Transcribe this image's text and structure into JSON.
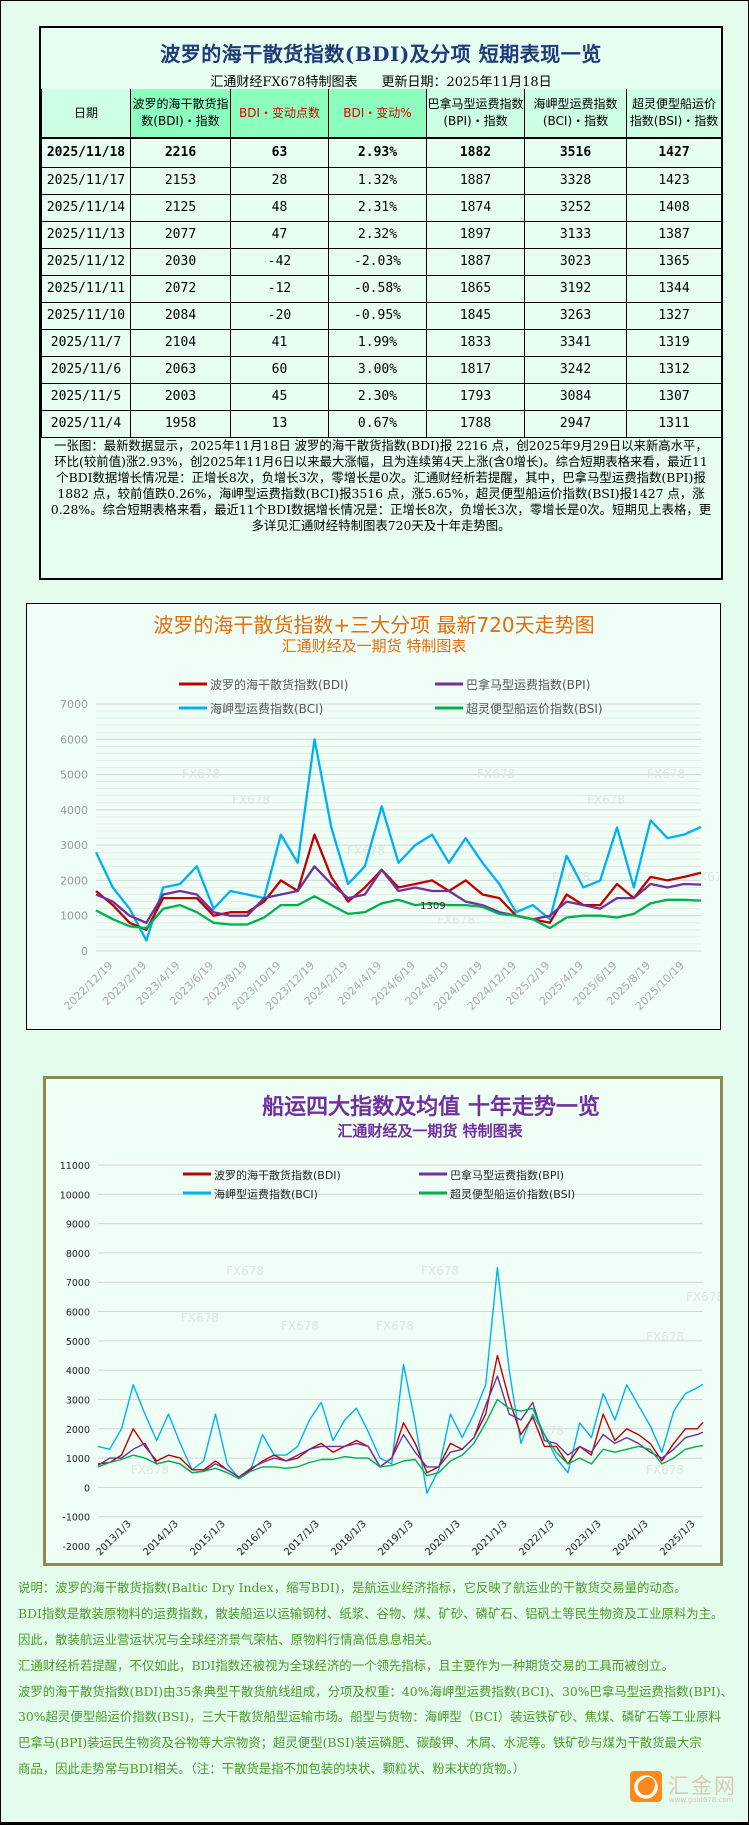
{
  "table_section": {
    "title": "波罗的海干散货指数(BDI)及分项 短期表现一览",
    "source": "汇通财经FX678特制图表",
    "updated": "更新日期：2025年11月18日",
    "headers": [
      "日期",
      "波罗的海干散货指数(BDI)・指数",
      "BDI・变动点数",
      "BDI・变动%",
      "巴拿马型运费指数(BPI)・指数",
      "海岬型运费指数(BCI)・指数",
      "超灵便型船运价指数(BSI)・指数"
    ],
    "rows": [
      [
        "2025/11/18",
        "2216",
        "63",
        "2.93%",
        "1882",
        "3516",
        "1427"
      ],
      [
        "2025/11/17",
        "2153",
        "28",
        "1.32%",
        "1887",
        "3328",
        "1423"
      ],
      [
        "2025/11/14",
        "2125",
        "48",
        "2.31%",
        "1874",
        "3252",
        "1408"
      ],
      [
        "2025/11/13",
        "2077",
        "47",
        "2.32%",
        "1897",
        "3133",
        "1387"
      ],
      [
        "2025/11/12",
        "2030",
        "-42",
        "-2.03%",
        "1887",
        "3023",
        "1365"
      ],
      [
        "2025/11/11",
        "2072",
        "-12",
        "-0.58%",
        "1865",
        "3192",
        "1344"
      ],
      [
        "2025/11/10",
        "2084",
        "-20",
        "-0.95%",
        "1845",
        "3263",
        "1327"
      ],
      [
        "2025/11/7",
        "2104",
        "41",
        "1.99%",
        "1833",
        "3341",
        "1319"
      ],
      [
        "2025/11/6",
        "2063",
        "60",
        "3.00%",
        "1817",
        "3242",
        "1312"
      ],
      [
        "2025/11/5",
        "2003",
        "45",
        "2.30%",
        "1793",
        "3084",
        "1307"
      ],
      [
        "2025/11/4",
        "1958",
        "13",
        "0.67%",
        "1788",
        "2947",
        "1311"
      ]
    ],
    "summary_lines": [
      "一张图：最新数据显示，2025年11月18日 波罗的海干散货指数(BDI)报 2216 点，创2025年9月29日以来新高水平，",
      "环比(较前值)涨2.93%，创2025年11月6日以来最大涨幅，且为连续第4天上涨(含0增长)。综合短期表格来看，最近11",
      "个BDI数据增长情况是：正增长8次，负增长3次，零增长是0次。汇通财经析若提醒，其中，巴拿马型运费指数(BPI)报",
      "1882 点，较前值跌0.26%，海岬型运费指数(BCI)报3516 点，涨5.65%，超灵便型船运价指数(BSI)报1427 点，涨",
      "0.28%。综合短期表格来看，最近11个BDI数据增长情况是：正增长8次，负增长3次，零增长是0次。短期见上表格，更",
      "多详见汇通财经特制图表720天及十年走势图。"
    ]
  },
  "chart_data": [
    {
      "type": "line",
      "title": "波罗的海干散货指数+三大分项  最新720天走势图",
      "subtitle": "汇通财经及一期货  特制图表",
      "title_color": "#e46c0a",
      "ylim": [
        0,
        7000
      ],
      "yticks": [
        "0",
        "1000",
        "2000",
        "3000",
        "4000",
        "5000",
        "6000",
        "7000"
      ],
      "xticks": [
        "2022/12/19",
        "2023/2/19",
        "2023/4/19",
        "2023/6/19",
        "2023/8/19",
        "2023/10/19",
        "2023/12/19",
        "2024/2/19",
        "2024/4/19",
        "2024/6/19",
        "2024/8/19",
        "2024/10/19",
        "2024/12/19",
        "2025/2/19",
        "2025/4/19",
        "2025/6/19",
        "2025/8/19",
        "2025/10/19"
      ],
      "grid": true,
      "legend_placement": "top",
      "annotation": "1309",
      "watermark": "FX678",
      "x": [
        "2022/11/18",
        "2022/12/18",
        "2023/1/18",
        "2023/2/18",
        "2023/3/18",
        "2023/4/18",
        "2023/5/18",
        "2023/6/18",
        "2023/7/18",
        "2023/8/18",
        "2023/9/18",
        "2023/10/18",
        "2023/11/18",
        "2023/12/18",
        "2024/1/18",
        "2024/2/18",
        "2024/3/18",
        "2024/4/18",
        "2024/5/18",
        "2024/6/18",
        "2024/7/18",
        "2024/8/18",
        "2024/9/18",
        "2024/10/18",
        "2024/11/18",
        "2024/12/18",
        "2025/1/18",
        "2025/2/18",
        "2025/3/18",
        "2025/4/18",
        "2025/5/18",
        "2025/6/18",
        "2025/7/18",
        "2025/8/18",
        "2025/9/18",
        "2025/10/18",
        "2025/11/18"
      ],
      "series": [
        {
          "name": "波罗的海干散货指数(BDI)",
          "color": "#c00000",
          "values": [
            1700,
            1300,
            800,
            600,
            1500,
            1500,
            1500,
            1000,
            1100,
            1100,
            1400,
            2000,
            1700,
            3300,
            2100,
            1400,
            1800,
            2300,
            1800,
            1900,
            2000,
            1700,
            2000,
            1600,
            1500,
            1000,
            900,
            800,
            1600,
            1300,
            1300,
            1900,
            1500,
            2100,
            2000,
            2100,
            2216
          ]
        },
        {
          "name": "巴拿马型运费指数(BPI)",
          "color": "#7030a0",
          "values": [
            1600,
            1400,
            1000,
            800,
            1600,
            1700,
            1600,
            1100,
            1000,
            1000,
            1500,
            1600,
            1700,
            2400,
            1900,
            1500,
            1600,
            2300,
            1700,
            1800,
            1700,
            1700,
            1400,
            1300,
            1100,
            1000,
            900,
            1000,
            1400,
            1300,
            1200,
            1500,
            1500,
            1900,
            1800,
            1900,
            1882
          ]
        },
        {
          "name": "海岬型运费指数(BCI)",
          "color": "#00b0f0",
          "values": [
            2800,
            1800,
            1200,
            300,
            1800,
            1900,
            2400,
            1200,
            1700,
            1600,
            1500,
            3300,
            2500,
            6000,
            3500,
            1900,
            2400,
            4100,
            2500,
            3000,
            3300,
            2500,
            3200,
            2500,
            1900,
            1100,
            1300,
            900,
            2700,
            1800,
            2000,
            3500,
            1800,
            3700,
            3200,
            3300,
            3516
          ]
        },
        {
          "name": "超灵便型船运价指数(BSI)",
          "color": "#00b050",
          "values": [
            1150,
            900,
            700,
            650,
            1200,
            1300,
            1100,
            800,
            750,
            750,
            950,
            1300,
            1300,
            1550,
            1300,
            1050,
            1100,
            1350,
            1450,
            1300,
            1350,
            1300,
            1300,
            1250,
            1050,
            1000,
            900,
            650,
            950,
            1000,
            1000,
            950,
            1050,
            1350,
            1450,
            1450,
            1427
          ]
        }
      ]
    },
    {
      "type": "line",
      "title": "船运四大指数及均值 十年走势一览",
      "subtitle": "汇通财经及一期货 特制图表",
      "title_color": "#7030a0",
      "ylim": [
        -2000,
        11000
      ],
      "yticks": [
        "-2000",
        "-1000",
        "0",
        "1000",
        "2000",
        "3000",
        "4000",
        "5000",
        "6000",
        "7000",
        "8000",
        "9000",
        "10000",
        "11000"
      ],
      "xticks": [
        "2013/1/3",
        "2014/1/3",
        "2015/1/3",
        "2016/1/3",
        "2017/1/3",
        "2018/1/3",
        "2019/1/3",
        "2020/1/3",
        "2021/1/3",
        "2022/1/3",
        "2023/1/3",
        "2024/1/3",
        "2025/1/3"
      ],
      "grid": true,
      "legend_placement": "top",
      "watermark": "FX678",
      "x": [
        "2013/1/3",
        "2013/4/3",
        "2013/7/3",
        "2013/10/3",
        "2014/1/3",
        "2014/4/3",
        "2014/7/3",
        "2014/10/3",
        "2015/1/3",
        "2015/4/3",
        "2015/7/3",
        "2015/10/3",
        "2016/1/3",
        "2016/4/3",
        "2016/7/3",
        "2016/10/3",
        "2017/1/3",
        "2017/4/3",
        "2017/7/3",
        "2017/10/3",
        "2018/1/3",
        "2018/4/3",
        "2018/7/3",
        "2018/10/3",
        "2019/1/3",
        "2019/4/3",
        "2019/7/3",
        "2019/10/3",
        "2020/1/3",
        "2020/4/3",
        "2020/7/3",
        "2020/10/3",
        "2021/1/3",
        "2021/4/3",
        "2021/7/3",
        "2021/10/3",
        "2022/1/3",
        "2022/4/3",
        "2022/7/3",
        "2022/10/3",
        "2023/1/3",
        "2023/4/3",
        "2023/7/3",
        "2023/10/3",
        "2024/1/3",
        "2024/4/3",
        "2024/7/3",
        "2024/10/3",
        "2025/1/3",
        "2025/4/3",
        "2025/7/3",
        "2025/10/3",
        "2025/11/18"
      ],
      "series": [
        {
          "name": "波罗的海干散货指数(BDI)",
          "color": "#c00000",
          "values": [
            800,
            850,
            1100,
            2000,
            1400,
            900,
            1100,
            1000,
            600,
            600,
            900,
            600,
            350,
            600,
            900,
            1100,
            900,
            1000,
            1300,
            1500,
            1200,
            1400,
            1600,
            1400,
            700,
            1000,
            2200,
            1500,
            500,
            700,
            1500,
            1300,
            1700,
            2500,
            4500,
            3000,
            1800,
            2400,
            1400,
            1400,
            800,
            1400,
            1100,
            2500,
            1600,
            2000,
            1800,
            1500,
            900,
            1500,
            2000,
            2000,
            2216
          ]
        },
        {
          "name": "巴拿马型运费指数(BPI)",
          "color": "#7030a0",
          "values": [
            750,
            1000,
            1000,
            1300,
            1500,
            800,
            900,
            800,
            500,
            550,
            800,
            600,
            350,
            650,
            850,
            1000,
            900,
            1100,
            1300,
            1400,
            1400,
            1400,
            1500,
            1400,
            700,
            1000,
            1800,
            1200,
            700,
            700,
            1200,
            1300,
            1700,
            2800,
            3800,
            2500,
            2300,
            2900,
            1600,
            1500,
            1100,
            1400,
            1200,
            1800,
            1500,
            1700,
            1500,
            1200,
            1000,
            1300,
            1700,
            1800,
            1882
          ]
        },
        {
          "name": "海岬型运费指数(BCI)",
          "color": "#00b0f0",
          "values": [
            1400,
            1300,
            2000,
            3500,
            2500,
            1600,
            2500,
            1500,
            600,
            900,
            2500,
            800,
            300,
            600,
            1800,
            1100,
            1100,
            1400,
            2300,
            2900,
            1600,
            2300,
            2700,
            1900,
            1000,
            800,
            4200,
            2200,
            -200,
            600,
            2500,
            1700,
            2500,
            3500,
            7500,
            4000,
            1500,
            2500,
            1800,
            1000,
            500,
            2200,
            1700,
            3200,
            2300,
            3500,
            2800,
            2100,
            1200,
            2600,
            3200,
            3400,
            3516
          ]
        },
        {
          "name": "超灵便型船运价指数(BSI)",
          "color": "#00b050",
          "values": [
            700,
            850,
            950,
            1100,
            1000,
            800,
            900,
            800,
            500,
            550,
            650,
            500,
            300,
            550,
            700,
            700,
            650,
            700,
            850,
            950,
            950,
            1050,
            1000,
            1000,
            700,
            750,
            900,
            950,
            400,
            500,
            900,
            1100,
            1500,
            2200,
            3000,
            2700,
            2600,
            2700,
            1800,
            1200,
            800,
            1000,
            800,
            1300,
            1200,
            1300,
            1400,
            1300,
            800,
            1000,
            1300,
            1400,
            1427
          ]
        }
      ]
    }
  ],
  "notes": [
    "说明：波罗的海干散货指数(Baltic Dry Index，缩写BDI)，是航运业经济指标，它反映了航运业的干散货交易量的动态。",
    "BDI指数是散装原物料的运费指数，散装船运以运输钢材、纸浆、谷物、煤、矿砂、磷矿石、铝矾土等民生物资及工业原料为主。",
    "因此，散装航运业营运状况与全球经济景气荣枯、原物料行情高低息息相关。",
    "汇通财经析若提醒，不仅如此，BDI指数还被视为全球经济的一个领先指标，且主要作为一种期货交易的工具而被创立。",
    "波罗的海干散货指数(BDI)由35条典型干散货航线组成，分项及权重：40%海岬型运费指数(BCI)、30%巴拿马型运费指数(BPI)、",
    "30%超灵便型船运价指数(BSI)，三大干散货船型运输市场。船型与货物：海岬型（BCI）装运铁矿砂、焦煤、磷矿石等工业原料",
    "巴拿马(BPI)装运民生物资及谷物等大宗物资；超灵便型(BSI)装运磷肥、碳酸钾、木屑、水泥等。铁矿砂与煤为干散货最大宗",
    "商品，因此走势常与BDI相关。（注：干散货是指不加包装的块状、颗粒状、粉末状的货物。）"
  ],
  "logo": {
    "name": "汇金网",
    "url": "www.gold678.com",
    "color": "#ff8a1c"
  }
}
